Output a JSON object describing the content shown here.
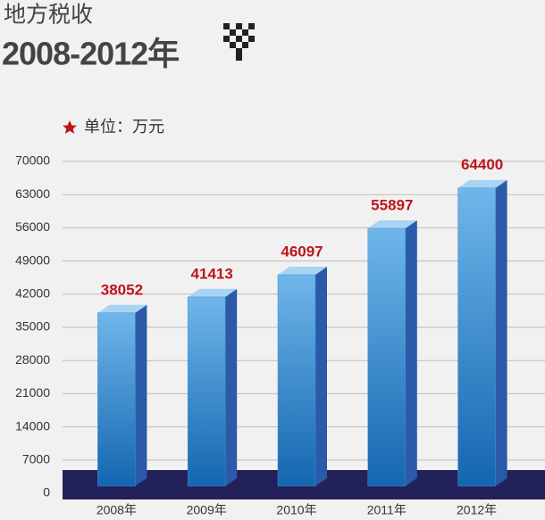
{
  "chart_data": {
    "type": "bar3d",
    "title": "地方税收",
    "subtitle": "2008-2012年",
    "unit_label": "单位：万元",
    "categories": [
      "2008年",
      "2009年",
      "2010年",
      "2011年",
      "2012年"
    ],
    "values": [
      38052,
      41413,
      46097,
      55897,
      64400
    ],
    "color": "#3d8fd6",
    "value_label_color": "#c0141c",
    "ylim": [
      0,
      70000
    ],
    "yticks": [
      0,
      7000,
      14000,
      21000,
      28000,
      35000,
      42000,
      49000,
      56000,
      63000,
      70000
    ],
    "grid": true
  }
}
